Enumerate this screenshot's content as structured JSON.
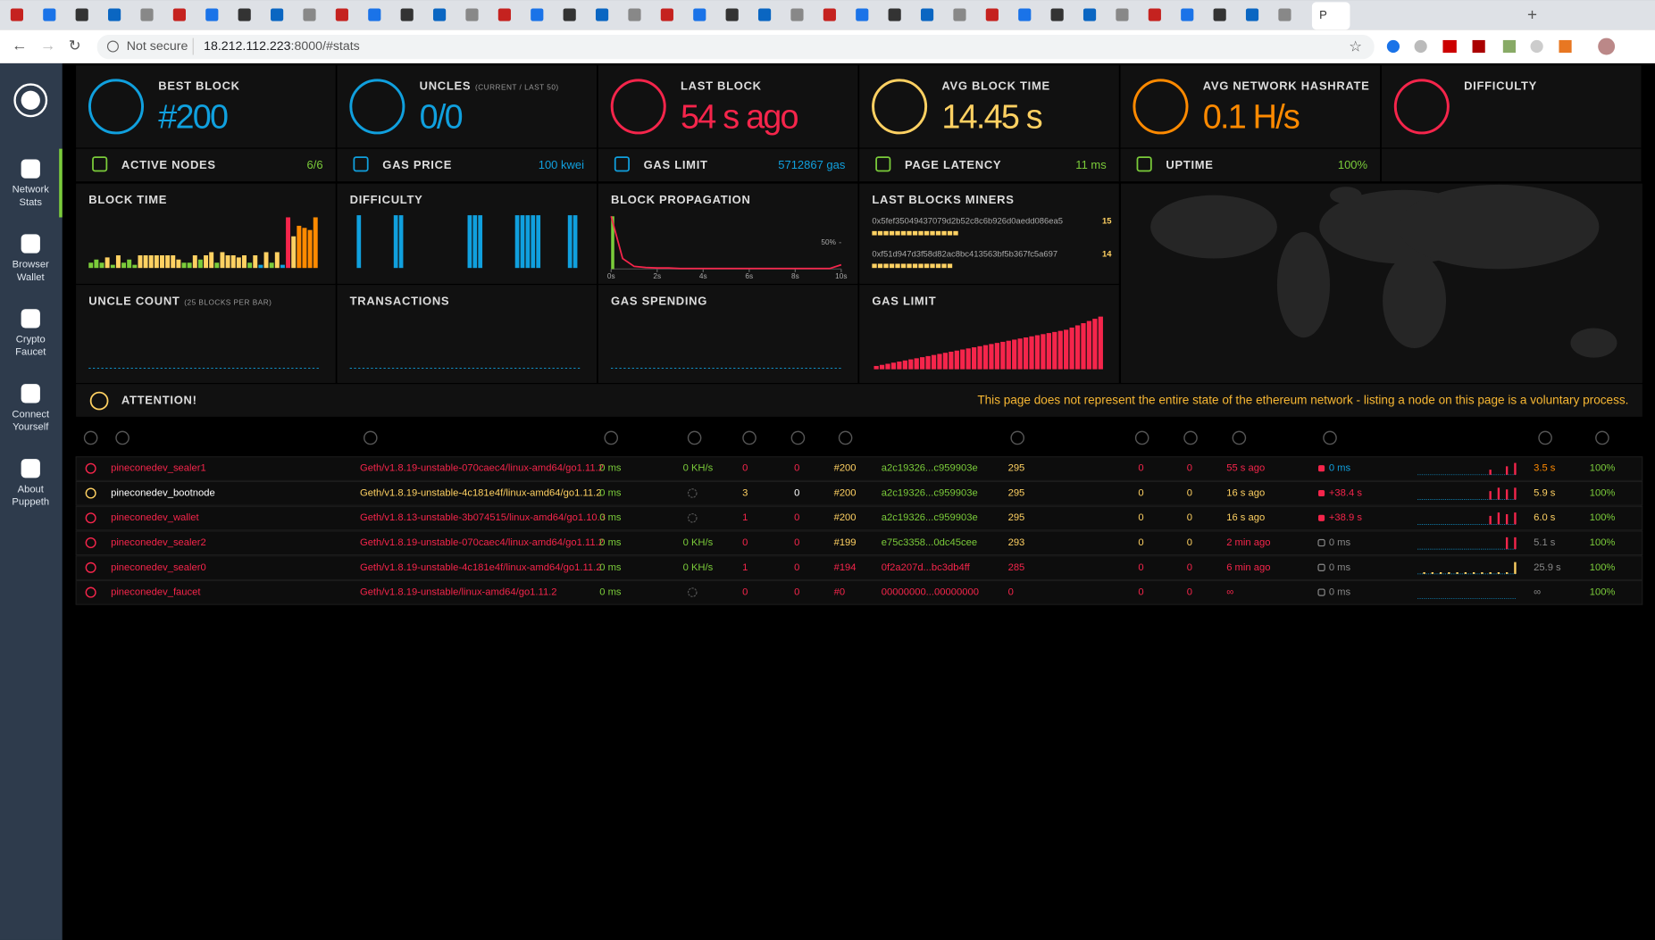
{
  "browser": {
    "active_tab": "P",
    "security": "Not secure",
    "host": "18.212.112.223",
    "rest": ":8000/#stats"
  },
  "sidebar": [
    {
      "label": [
        "Network",
        "Stats"
      ]
    },
    {
      "label": [
        "Browser",
        "Wallet"
      ]
    },
    {
      "label": [
        "Crypto",
        "Faucet"
      ]
    },
    {
      "label": [
        "Connect",
        "Yourself"
      ]
    },
    {
      "label": [
        "About",
        "Puppeth"
      ]
    }
  ],
  "stats": [
    {
      "title": "BEST BLOCK",
      "value": "#200",
      "color": "#10a0de"
    },
    {
      "title": "UNCLES",
      "subtitle": "(CURRENT / LAST 50)",
      "value": "0/0",
      "color": "#10a0de"
    },
    {
      "title": "LAST BLOCK",
      "value": "54 s ago",
      "color": "#f5254b"
    },
    {
      "title": "AVG BLOCK TIME",
      "value": "14.45 s",
      "color": "#ffd162"
    },
    {
      "title": "AVG NETWORK HASHRATE",
      "value": "0.1 H/s",
      "color": "#ff8a00"
    },
    {
      "title": "DIFFICULTY",
      "color": "#f5254b"
    }
  ],
  "small_stats": [
    {
      "title": "ACTIVE NODES",
      "value": "6/6",
      "color": "#7bcc3a"
    },
    {
      "title": "GAS PRICE",
      "value": "100 kwei",
      "color": "#10a0de"
    },
    {
      "title": "GAS LIMIT",
      "value": "5712867 gas",
      "color": "#10a0de"
    },
    {
      "title": "PAGE LATENCY",
      "value": "11 ms",
      "color": "#7bcc3a"
    },
    {
      "title": "UPTIME",
      "value": "100%",
      "color": "#7bcc3a"
    }
  ],
  "charts": {
    "block_time": {
      "title": "BLOCK TIME",
      "ylim": [
        0,
        50
      ],
      "values": [
        5,
        8,
        5,
        10,
        3,
        12,
        5,
        8,
        3,
        12,
        12,
        12,
        12,
        12,
        12,
        12,
        8,
        5,
        5,
        12,
        8,
        12,
        15,
        5,
        15,
        12,
        12,
        10,
        12,
        5,
        12,
        3,
        15,
        5,
        15,
        3,
        48,
        30,
        40,
        38,
        36,
        48
      ],
      "colors": [
        "#7bcc3a",
        "#7bcc3a",
        "#7bcc3a",
        "#ffd162",
        "#7bcc3a",
        "#ffd162",
        "#7bcc3a",
        "#7bcc3a",
        "#7bcc3a",
        "#ffd162",
        "#ffd162",
        "#ffd162",
        "#ffd162",
        "#ffd162",
        "#ffd162",
        "#ffd162",
        "#ffd162",
        "#7bcc3a",
        "#7bcc3a",
        "#ffd162",
        "#7bcc3a",
        "#ffd162",
        "#ffd162",
        "#7bcc3a",
        "#ffd162",
        "#ffd162",
        "#ffd162",
        "#ffd162",
        "#ffd162",
        "#7bcc3a",
        "#ffd162",
        "#10a0de",
        "#ffd162",
        "#7bcc3a",
        "#ffd162",
        "#10a0de",
        "#f5254b",
        "#ffd162",
        "#ff8a00",
        "#ff8a00",
        "#ff8a00",
        "#ff8a00"
      ]
    },
    "difficulty": {
      "title": "DIFFICULTY",
      "ylim": [
        0,
        1
      ],
      "color": "#10a0de",
      "values": [
        0,
        1,
        0,
        0,
        0,
        0,
        0,
        0,
        1,
        1,
        0,
        0,
        0,
        0,
        0,
        0,
        0,
        0,
        0,
        0,
        0,
        0,
        1,
        1,
        1,
        0,
        0,
        0,
        0,
        0,
        0,
        1,
        1,
        1,
        1,
        1,
        0,
        0,
        0,
        0,
        0,
        1,
        1,
        0
      ]
    },
    "block_propagation": {
      "title": "BLOCK PROPAGATION",
      "xlim": [
        0,
        10
      ],
      "ylim": [
        0,
        100
      ],
      "xticks": [
        {
          "value": 0,
          "label": "0s"
        },
        {
          "value": 2,
          "label": "2s"
        },
        {
          "value": 4,
          "label": "4s"
        },
        {
          "value": 6,
          "label": "6s"
        },
        {
          "value": 8,
          "label": "8s"
        },
        {
          "value": 10,
          "label": "10s"
        }
      ],
      "yticks": [
        {
          "value": 50,
          "label": "50%"
        }
      ],
      "x": [
        0,
        0.5,
        1,
        1.5,
        2,
        2.5,
        3,
        3.5,
        4,
        4.5,
        5,
        5.5,
        6,
        6.5,
        7,
        7.5,
        8,
        8.5,
        9,
        9.5,
        10
      ],
      "values": [
        100,
        20,
        5,
        3,
        2,
        2,
        1,
        1,
        1,
        1,
        1,
        1,
        1,
        1,
        1,
        1,
        1,
        1,
        1,
        1,
        8
      ],
      "color": "#f5254b"
    },
    "miners": {
      "title": "LAST BLOCKS MINERS",
      "entries": [
        {
          "address": "0x5fef35049437079d2b52c8c6b926d0aedd086ea5",
          "count": 15
        },
        {
          "address": "0xf51d947d3f58d82ac8bc413563bf5b367fc5a697",
          "count": 14
        }
      ]
    },
    "uncle_count": {
      "title": "UNCLE COUNT",
      "subtitle": "(25 BLOCKS PER BAR)"
    },
    "transactions": {
      "title": "TRANSACTIONS"
    },
    "gas_spending": {
      "title": "GAS SPENDING"
    },
    "gas_limit": {
      "title": "GAS LIMIT",
      "ylim": [
        0,
        50
      ],
      "color": "#f5254b",
      "values": [
        3,
        4,
        5,
        6,
        7,
        8,
        9,
        10,
        11,
        12,
        13,
        14,
        15,
        16,
        17,
        18,
        19,
        20,
        21,
        22,
        23,
        24,
        25,
        26,
        27,
        28,
        29,
        30,
        31,
        32,
        33,
        34,
        35,
        36,
        38,
        40,
        42,
        44,
        46,
        48
      ]
    }
  },
  "attention": {
    "title": "ATTENTION!",
    "message": "This page does not represent the entire state of the ethereum network - listing a node on this page is a voluntary process."
  },
  "nodes": [
    {
      "status": "#f5254b",
      "name": "pineconedev_sealer1",
      "client": "Geth/v1.8.19-unstable-070caec4/linux-amd64/go1.11.2",
      "latency": "0 ms",
      "hashrate": "0 KH/s",
      "peers": "0",
      "pending": "0",
      "block": "#200",
      "hash": "a2c19326...c959903e",
      "difficulty": "295",
      "transactions": "0",
      "uncles": "0",
      "last_block": "55 s ago",
      "propagation": "0 ms",
      "avg": "3.5 s",
      "uptime": "100%",
      "colors": [
        "#f5254b",
        "#f5254b",
        "#7bcc3a",
        "#7bcc3a",
        "#f5254b",
        "#f5254b",
        "#ffd162",
        "#7bcc3a",
        "#ffd162",
        "#f5254b",
        "#f5254b",
        "#f5254b",
        "#10a0de",
        "#ff8a00",
        "#7bcc3a"
      ],
      "dot": "#f5254b",
      "spark_color": "#f5254b",
      "history": [
        0,
        0,
        0,
        0,
        0,
        0,
        0,
        0,
        6,
        0,
        10,
        14
      ]
    },
    {
      "status": "#ffd162",
      "name": "pineconedev_bootnode",
      "client": "Geth/v1.8.19-unstable-4c181e4f/linux-amd64/go1.11.2",
      "latency": "0 ms",
      "peers": "3",
      "pending": "0",
      "block": "#200",
      "hash": "a2c19326...c959903e",
      "difficulty": "295",
      "transactions": "0",
      "uncles": "0",
      "last_block": "16 s ago",
      "propagation": "+38.4 s",
      "avg": "5.9 s",
      "uptime": "100%",
      "colors": [
        "#ffffff",
        "#ffd162",
        "#7bcc3a",
        "#555555",
        "#ffd162",
        "#ffffff",
        "#ffd162",
        "#7bcc3a",
        "#ffd162",
        "#ffd162",
        "#ffd162",
        "#ffd162",
        "#f5254b",
        "#ffd162",
        "#7bcc3a"
      ],
      "dot": "#f5254b",
      "spark_color": "#f5254b",
      "history": [
        0,
        0,
        0,
        0,
        0,
        0,
        0,
        0,
        10,
        14,
        12,
        14
      ]
    },
    {
      "status": "#f5254b",
      "name": "pineconedev_wallet",
      "client": "Geth/v1.8.13-unstable-3b074515/linux-amd64/go1.10.3",
      "latency": "0 ms",
      "peers": "1",
      "pending": "0",
      "block": "#200",
      "hash": "a2c19326...c959903e",
      "difficulty": "295",
      "transactions": "0",
      "uncles": "0",
      "last_block": "16 s ago",
      "propagation": "+38.9 s",
      "avg": "6.0 s",
      "uptime": "100%",
      "colors": [
        "#f5254b",
        "#f5254b",
        "#7bcc3a",
        "#555555",
        "#f5254b",
        "#f5254b",
        "#ffd162",
        "#7bcc3a",
        "#ffd162",
        "#ffd162",
        "#ffd162",
        "#ffd162",
        "#f5254b",
        "#ffd162",
        "#7bcc3a"
      ],
      "dot": "#f5254b",
      "spark_color": "#f5254b",
      "history": [
        0,
        0,
        0,
        0,
        0,
        0,
        0,
        0,
        10,
        14,
        12,
        14
      ]
    },
    {
      "status": "#f5254b",
      "name": "pineconedev_sealer2",
      "client": "Geth/v1.8.19-unstable-070caec4/linux-amd64/go1.11.2",
      "latency": "0 ms",
      "hashrate": "0 KH/s",
      "peers": "0",
      "pending": "0",
      "block": "#199",
      "hash": "e75c3358...0dc45cee",
      "difficulty": "293",
      "transactions": "0",
      "uncles": "0",
      "last_block": "2 min ago",
      "propagation": "0 ms",
      "avg": "5.1 s",
      "uptime": "100%",
      "colors": [
        "#f5254b",
        "#f5254b",
        "#7bcc3a",
        "#7bcc3a",
        "#f5254b",
        "#f5254b",
        "#ffd162",
        "#7bcc3a",
        "#ffd162",
        "#ffd162",
        "#ffd162",
        "#f5254b",
        "#888888",
        "#888888",
        "#7bcc3a"
      ],
      "dot": "none",
      "spark_color": "#f5254b",
      "history": [
        0,
        0,
        0,
        0,
        0,
        0,
        0,
        0,
        0,
        0,
        14,
        14
      ]
    },
    {
      "status": "#f5254b",
      "name": "pineconedev_sealer0",
      "client": "Geth/v1.8.19-unstable-4c181e4f/linux-amd64/go1.11.2",
      "latency": "0 ms",
      "hashrate": "0 KH/s",
      "peers": "1",
      "pending": "0",
      "block": "#194",
      "hash": "0f2a207d...bc3db4ff",
      "difficulty": "285",
      "transactions": "0",
      "uncles": "0",
      "last_block": "6 min ago",
      "propagation": "0 ms",
      "avg": "25.9 s",
      "uptime": "100%",
      "colors": [
        "#f5254b",
        "#f5254b",
        "#7bcc3a",
        "#7bcc3a",
        "#f5254b",
        "#f5254b",
        "#f5254b",
        "#f5254b",
        "#f5254b",
        "#f5254b",
        "#f5254b",
        "#f5254b",
        "#888888",
        "#888888",
        "#7bcc3a"
      ],
      "dot": "none",
      "spark_color": "#ffd162",
      "history": [
        2,
        2,
        2,
        2,
        2,
        2,
        2,
        2,
        2,
        2,
        2,
        14
      ]
    },
    {
      "status": "#f5254b",
      "name": "pineconedev_faucet",
      "client": "Geth/v1.8.19-unstable/linux-amd64/go1.11.2",
      "latency": "0 ms",
      "peers": "0",
      "pending": "0",
      "block": "#0",
      "hash": "00000000...00000000",
      "difficulty": "0",
      "transactions": "0",
      "uncles": "0",
      "last_block": "∞",
      "propagation": "0 ms",
      "avg": "∞",
      "uptime": "100%",
      "colors": [
        "#f5254b",
        "#f5254b",
        "#7bcc3a",
        "#555555",
        "#f5254b",
        "#f5254b",
        "#f5254b",
        "#f5254b",
        "#f5254b",
        "#f5254b",
        "#f5254b",
        "#f5254b",
        "#888888",
        "#888888",
        "#7bcc3a"
      ],
      "dot": "none",
      "spark_color": "#f5254b",
      "history": [
        0,
        0,
        0,
        0,
        0,
        0,
        0,
        0,
        0,
        0,
        0,
        0
      ]
    }
  ]
}
